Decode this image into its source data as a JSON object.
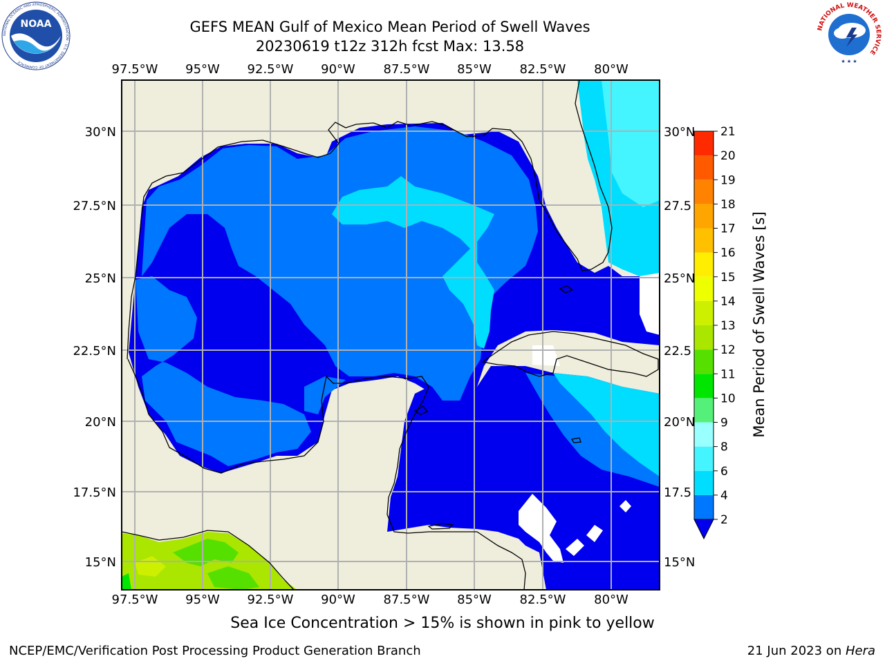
{
  "title": {
    "line1": "GEFS MEAN Gulf of Mexico Mean Period of Swell Waves",
    "line2": "20230619 t12z 312h fcst   Max: 13.58"
  },
  "map": {
    "lon_ticks": [
      "97.5°W",
      "95°W",
      "92.5°W",
      "90°W",
      "87.5°W",
      "85°W",
      "82.5°W",
      "80°W"
    ],
    "lat_ticks_left": [
      "30°N",
      "27.5°N",
      "25°N",
      "22.5°N",
      "20°N",
      "17.5°N",
      "15°N"
    ],
    "lat_ticks_right": [
      "30°N",
      "27.5",
      "25°N",
      "22.5",
      "20°N",
      "17.5",
      "15°N"
    ],
    "land_color": "#efeedd",
    "grid_color": "#b0b0b0"
  },
  "colorbar": {
    "label": "Mean Period of Swell Waves [s]",
    "levels": [
      "2",
      "4",
      "6",
      "8",
      "9",
      "10",
      "11",
      "12",
      "13",
      "14",
      "15",
      "16",
      "17",
      "18",
      "19",
      "20",
      "21"
    ],
    "colors": [
      "#0000ee",
      "#0077ff",
      "#00ddff",
      "#44f4ff",
      "#99ffff",
      "#55f07a",
      "#00e600",
      "#55e000",
      "#aae600",
      "#ccf000",
      "#eeff00",
      "#ffee00",
      "#ffc000",
      "#ffa500",
      "#ff8200",
      "#ff5a00",
      "#ff2a00",
      "#ff0000"
    ]
  },
  "ice_note": "Sea Ice Concentration > 15% is shown in pink to yellow",
  "footer": {
    "left": "NCEP/EMC/Verification Post Processing Product Generation Branch",
    "right_date": "21 Jun 2023 on ",
    "right_host": "Hera"
  },
  "logos": {
    "noaa_text": "NOAA",
    "noaa_ring": "NATIONAL OCEANIC AND ATMOSPHERIC ADMINISTRATION · U.S. DEPARTMENT OF COMMERCE",
    "nws_ring": "NATIONAL WEATHER SERVICE"
  }
}
